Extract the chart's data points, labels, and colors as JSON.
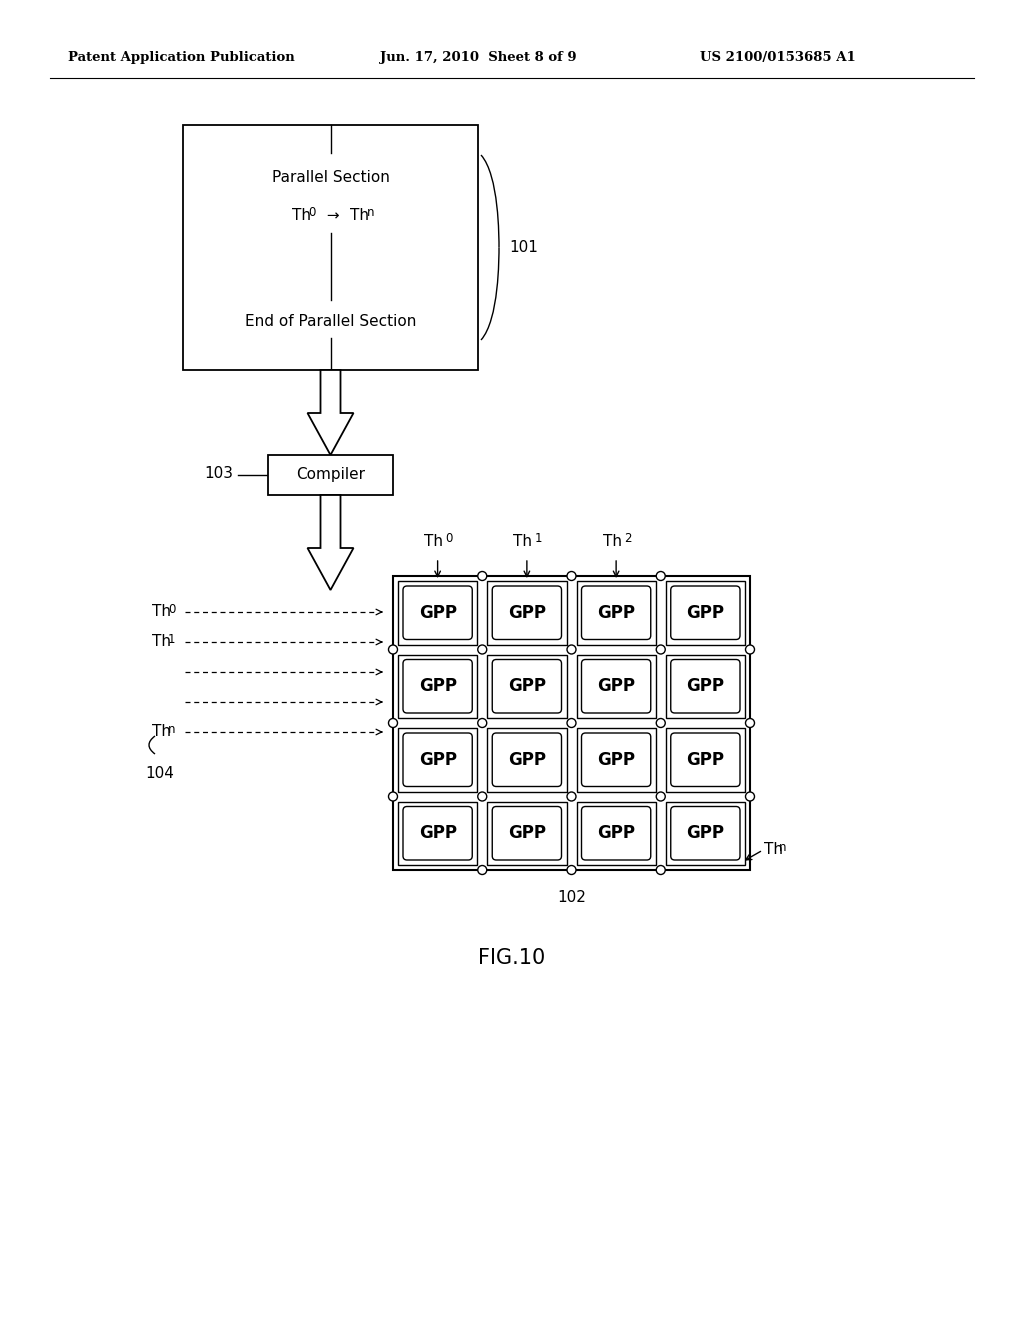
{
  "bg_color": "#ffffff",
  "header_left": "Patent Application Publication",
  "header_mid": "Jun. 17, 2010  Sheet 8 of 9",
  "header_right": "US 2100/0153685 A1",
  "fig_label": "FIG.10",
  "label101": "101",
  "label103": "103",
  "label102": "102",
  "label104": "104",
  "compiler_label": "Compiler",
  "gpp_label": "GPP",
  "box101_top_text": "Parallel Section",
  "box101_mid_text1": "Th",
  "box101_mid_sub1": "0",
  "box101_mid_arrow": "→",
  "box101_mid_text2": "Th",
  "box101_mid_sub2": "n",
  "box101_bot_text": "End of Parallel Section",
  "th_labels_top": [
    "Th",
    "Th",
    "Th"
  ],
  "th_subs_top": [
    "0",
    "1",
    "2"
  ],
  "th_label_br": "Th",
  "th_sub_br": "n",
  "thread_show": [
    true,
    true,
    false,
    false,
    true
  ],
  "thread_labels": [
    "Th",
    "Th",
    "",
    "",
    "Th"
  ],
  "thread_subs": [
    "0",
    "1",
    "",
    "",
    "n"
  ]
}
